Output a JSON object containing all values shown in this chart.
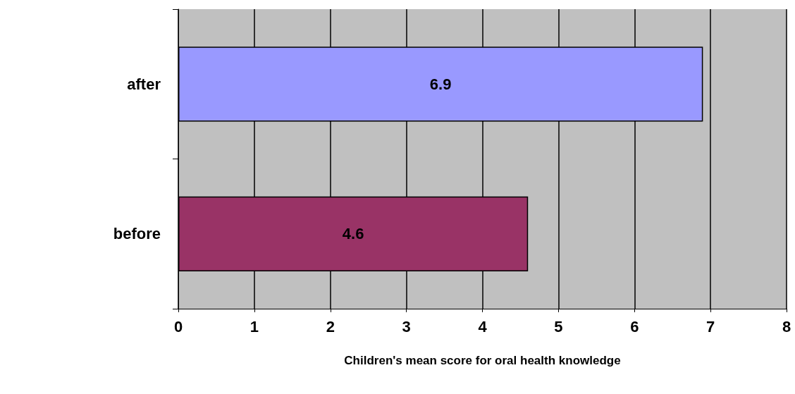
{
  "chart_data": {
    "type": "bar",
    "orientation": "horizontal",
    "categories": [
      "after",
      "before"
    ],
    "values": [
      6.9,
      4.6
    ],
    "colors": [
      "#9999ff",
      "#993366"
    ],
    "xlim": [
      0,
      8
    ],
    "xticks": [
      0,
      1,
      2,
      3,
      4,
      5,
      6,
      7,
      8
    ],
    "xlabel": "Children's mean score for oral health knowledge",
    "grid": "x",
    "data_labels": true
  }
}
